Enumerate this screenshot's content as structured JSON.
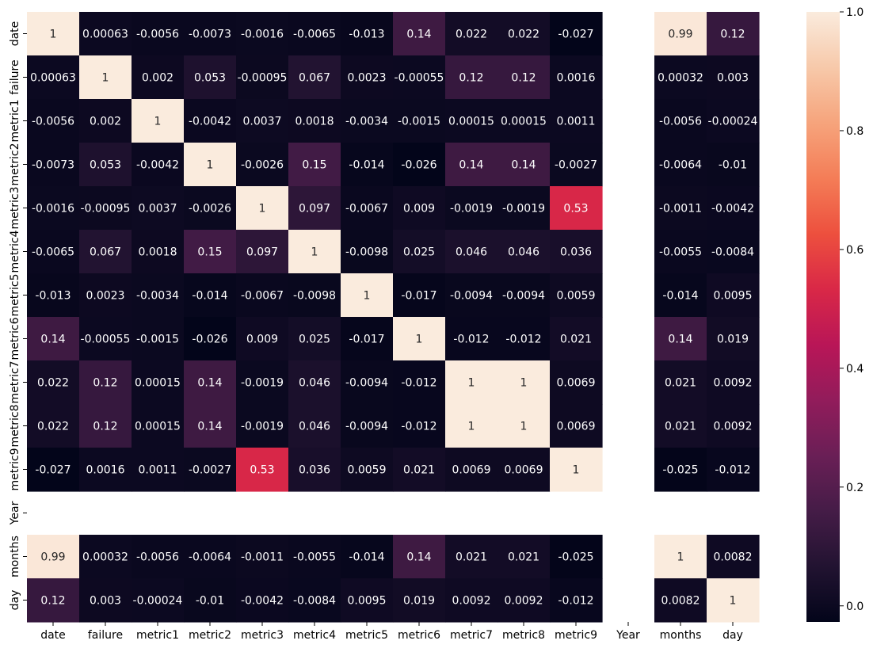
{
  "chart_data": {
    "type": "heatmap",
    "x_labels": [
      "date",
      "failure",
      "metric1",
      "metric2",
      "metric3",
      "metric4",
      "metric5",
      "metric6",
      "metric7",
      "metric8",
      "metric9",
      "Year",
      "months",
      "day"
    ],
    "y_labels": [
      "date",
      "failure",
      "metric1",
      "metric2",
      "metric3",
      "metric4",
      "metric5",
      "metric6",
      "metric7",
      "metric8",
      "metric9",
      "Year",
      "months",
      "day"
    ],
    "values": [
      [
        1,
        0.00063,
        -0.0056,
        -0.0073,
        -0.0016,
        -0.0065,
        -0.013,
        0.14,
        0.022,
        0.022,
        -0.027,
        null,
        0.99,
        0.12
      ],
      [
        0.00063,
        1,
        0.002,
        0.053,
        -0.00095,
        0.067,
        0.0023,
        -0.00055,
        0.12,
        0.12,
        0.0016,
        null,
        0.00032,
        0.003
      ],
      [
        -0.0056,
        0.002,
        1,
        -0.0042,
        0.0037,
        0.0018,
        -0.0034,
        -0.0015,
        0.00015,
        0.00015,
        0.0011,
        null,
        -0.0056,
        -0.00024
      ],
      [
        -0.0073,
        0.053,
        -0.0042,
        1,
        -0.0026,
        0.15,
        -0.014,
        -0.026,
        0.14,
        0.14,
        -0.0027,
        null,
        -0.0064,
        -0.01
      ],
      [
        -0.0016,
        -0.00095,
        0.0037,
        -0.0026,
        1,
        0.097,
        -0.0067,
        0.009,
        -0.0019,
        -0.0019,
        0.53,
        null,
        -0.0011,
        -0.0042
      ],
      [
        -0.0065,
        0.067,
        0.0018,
        0.15,
        0.097,
        1,
        -0.0098,
        0.025,
        0.046,
        0.046,
        0.036,
        null,
        -0.0055,
        -0.0084
      ],
      [
        -0.013,
        0.0023,
        -0.0034,
        -0.014,
        -0.0067,
        -0.0098,
        1,
        -0.017,
        -0.0094,
        -0.0094,
        0.0059,
        null,
        -0.014,
        0.0095
      ],
      [
        0.14,
        -0.00055,
        -0.0015,
        -0.026,
        0.009,
        0.025,
        -0.017,
        1,
        -0.012,
        -0.012,
        0.021,
        null,
        0.14,
        0.019
      ],
      [
        0.022,
        0.12,
        0.00015,
        0.14,
        -0.0019,
        0.046,
        -0.0094,
        -0.012,
        1,
        1,
        0.0069,
        null,
        0.021,
        0.0092
      ],
      [
        0.022,
        0.12,
        0.00015,
        0.14,
        -0.0019,
        0.046,
        -0.0094,
        -0.012,
        1,
        1,
        0.0069,
        null,
        0.021,
        0.0092
      ],
      [
        -0.027,
        0.0016,
        0.0011,
        -0.0027,
        0.53,
        0.036,
        0.0059,
        0.021,
        0.0069,
        0.0069,
        1,
        null,
        -0.025,
        -0.012
      ],
      [
        null,
        null,
        null,
        null,
        null,
        null,
        null,
        null,
        null,
        null,
        null,
        null,
        null,
        null
      ],
      [
        0.99,
        0.00032,
        -0.0056,
        -0.0064,
        -0.0011,
        -0.0055,
        -0.014,
        0.14,
        0.021,
        0.021,
        -0.025,
        null,
        1,
        0.0082
      ],
      [
        0.12,
        0.003,
        -0.00024,
        -0.01,
        -0.0042,
        -0.0084,
        0.0095,
        0.019,
        0.0092,
        0.0092,
        -0.012,
        null,
        0.0082,
        1
      ]
    ],
    "vmin": -0.027,
    "vmax": 1.0,
    "colorbar": {
      "ticks": [
        0.0,
        0.2,
        0.4,
        0.6,
        0.8,
        1.0
      ],
      "tick_labels": [
        "0.0",
        "0.2",
        "0.4",
        "0.6",
        "0.8",
        "1.0"
      ],
      "colormap": "rocket",
      "colormap_stops": [
        "#03051a",
        "#221331",
        "#451c47",
        "#6a1f56",
        "#921c5b",
        "#b91657",
        "#d92847",
        "#ed503e",
        "#f47d57",
        "#f6a47c",
        "#f7c9aa",
        "#faebdd"
      ]
    },
    "annot_light_text_color": "#ffffff",
    "annot_dark_text_color": "#262626",
    "grid": false,
    "title": "",
    "xlabel": "",
    "ylabel": ""
  }
}
